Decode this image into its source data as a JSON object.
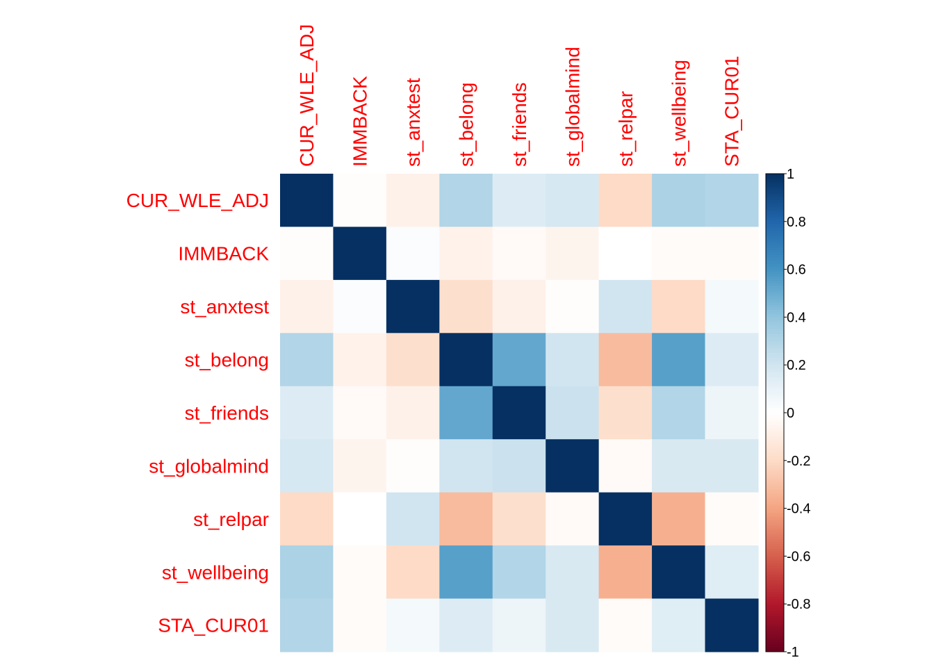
{
  "chart_data": {
    "type": "heatmap",
    "variables": [
      "CUR_WLE_ADJ",
      "IMMBACK",
      "st_anxtest",
      "st_belong",
      "st_friends",
      "st_globalmind",
      "st_relpar",
      "st_wellbeing",
      "STA_CUR01"
    ],
    "matrix": [
      [
        1.0,
        -0.01,
        -0.08,
        0.3,
        0.15,
        0.18,
        -0.2,
        0.32,
        0.3
      ],
      [
        -0.01,
        1.0,
        0.02,
        -0.07,
        -0.03,
        -0.06,
        0.0,
        -0.02,
        -0.02
      ],
      [
        -0.08,
        0.02,
        1.0,
        -0.18,
        -0.08,
        -0.01,
        0.2,
        -0.2,
        0.05
      ],
      [
        0.3,
        -0.07,
        -0.18,
        1.0,
        0.52,
        0.2,
        -0.32,
        0.55,
        0.15
      ],
      [
        0.15,
        -0.03,
        -0.08,
        0.52,
        1.0,
        0.22,
        -0.18,
        0.3,
        0.08
      ],
      [
        0.18,
        -0.06,
        -0.01,
        0.2,
        0.22,
        1.0,
        -0.03,
        0.17,
        0.17
      ],
      [
        -0.2,
        0.0,
        0.2,
        -0.32,
        -0.18,
        -0.03,
        1.0,
        -0.36,
        -0.02
      ],
      [
        0.32,
        -0.02,
        -0.2,
        0.55,
        0.3,
        0.17,
        -0.36,
        1.0,
        0.14
      ],
      [
        0.3,
        -0.02,
        0.05,
        0.15,
        0.08,
        0.17,
        -0.02,
        0.14,
        1.0
      ]
    ],
    "colorbar": {
      "min": -1,
      "max": 1,
      "ticks": [
        "1",
        "0.8",
        "0.6",
        "0.4",
        "0.2",
        "0",
        "-0.2",
        "-0.4",
        "-0.6",
        "-0.8",
        "-1"
      ]
    },
    "colors": [
      "#67001F",
      "#B2182B",
      "#D6604D",
      "#F4A582",
      "#FDDBC7",
      "#FFFFFF",
      "#D1E5F0",
      "#92C5DE",
      "#4393C3",
      "#2166AC",
      "#053061"
    ],
    "label_color": "#FF0000"
  }
}
